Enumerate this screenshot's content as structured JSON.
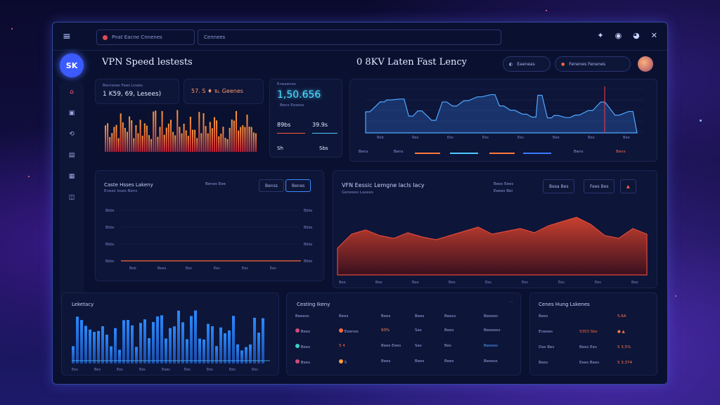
{
  "topbar": {
    "menu_icon": "≡",
    "address": "Pnat Eacne Cnnenes",
    "search_placeholder": "Cennees",
    "icons": [
      "✦",
      "◉",
      "◕",
      "✕"
    ]
  },
  "sidebar": {
    "logo": "SK",
    "items": [
      "⌂",
      "▣",
      "⟲",
      "▤",
      "▦",
      "◫"
    ]
  },
  "header": {
    "title_left": "VPN Speed lestests",
    "title_right": "0 8KV Laten Fast Lency",
    "pill_1": "Eaeneas",
    "pill_2": "Fenenes   Fenenes"
  },
  "panel_speed": {
    "label": "Bennews Fees Lnees",
    "value": "1 K59, 69, Lesees)",
    "badge": "57. S ♦ ℡ Geenes"
  },
  "panel_center": {
    "label": "Eneeenes",
    "value": "1,50.656",
    "sub": "Bens Eeaess",
    "stat_1": "89bs",
    "stat_2": "39.9s",
    "stat_3": "Sh",
    "stat_4": "Sbs"
  },
  "panel_top_right": {
    "legend": [
      "Bens",
      "Bens",
      "Bens",
      "Bens"
    ],
    "x_labels": [
      "Beb",
      "Ree",
      "Ees",
      "Ees",
      "Ees",
      "Bee",
      "Bee",
      "Bee"
    ]
  },
  "panel_latency_mid": {
    "title": "Caste Hsses Lakeny",
    "subtitle": "Enees Isses Bens",
    "tabs": [
      "Benes Eee",
      "Benss",
      "Benes"
    ],
    "y_labels": [
      "Bbbs",
      "Bbbs",
      "Bbbs",
      "Bbbs"
    ],
    "y_labels_right": [
      "Bbbs",
      "Bbbs",
      "Bbbs",
      "Bbbs"
    ],
    "x_labels": [
      "Beb",
      "Bees",
      "Ees",
      "Ees",
      "Ees",
      "Ees"
    ]
  },
  "panel_vpn": {
    "title": "VFN Eessic Lemgne lacls Iacy",
    "subtitle": "Geneees Lasees",
    "chip_1": "Bees Eees",
    "chip_2": "Eeees Bel",
    "chip_3": "Besa Bes",
    "chip_4": "Fees Bes",
    "x_labels": [
      "Bee",
      "Bee",
      "Bee",
      "Bee",
      "Ees",
      "Ees",
      "Ees",
      "Ees",
      "Bee"
    ]
  },
  "panel_bottom_left": {
    "title": "Leketacy",
    "x_labels": [
      "Ees",
      "Bes",
      "Ees",
      "Ees",
      "Eaes",
      "Ees",
      "Ees",
      "Ees",
      "Ees"
    ]
  },
  "panel_table": {
    "title": "Cesting Ikeny",
    "headers": [
      "Beeess",
      "Bees",
      "Bees",
      "Bees",
      "Beess",
      "Beeees"
    ],
    "rows": [
      [
        "Bees",
        "Eeenes",
        "93%",
        "Ses",
        "Bees",
        "Beeeees"
      ],
      [
        "Bees",
        "5 4",
        "Bees Eees",
        "Ses",
        "Bes",
        "Beeees"
      ],
      [
        "Bees",
        "5",
        "Bees",
        "Bees",
        "Bees",
        "Beeess"
      ]
    ]
  },
  "panel_list": {
    "title": "Cenes Hung Lskenes",
    "rows": [
      {
        "label": "Bees",
        "value": "5,6A"
      },
      {
        "label": "Eneees",
        "value": "5353 Sbs"
      },
      {
        "label": "Das Bes",
        "value": "Bees Ees",
        "value2": "5 3,5%"
      },
      {
        "label": "Bees",
        "value": "Eees Bees",
        "value2": "5 3,374"
      }
    ]
  },
  "colors": {
    "accent_blue": "#4fc8ff",
    "accent_red": "#e0483a",
    "accent_orange": "#ff8a3a"
  }
}
